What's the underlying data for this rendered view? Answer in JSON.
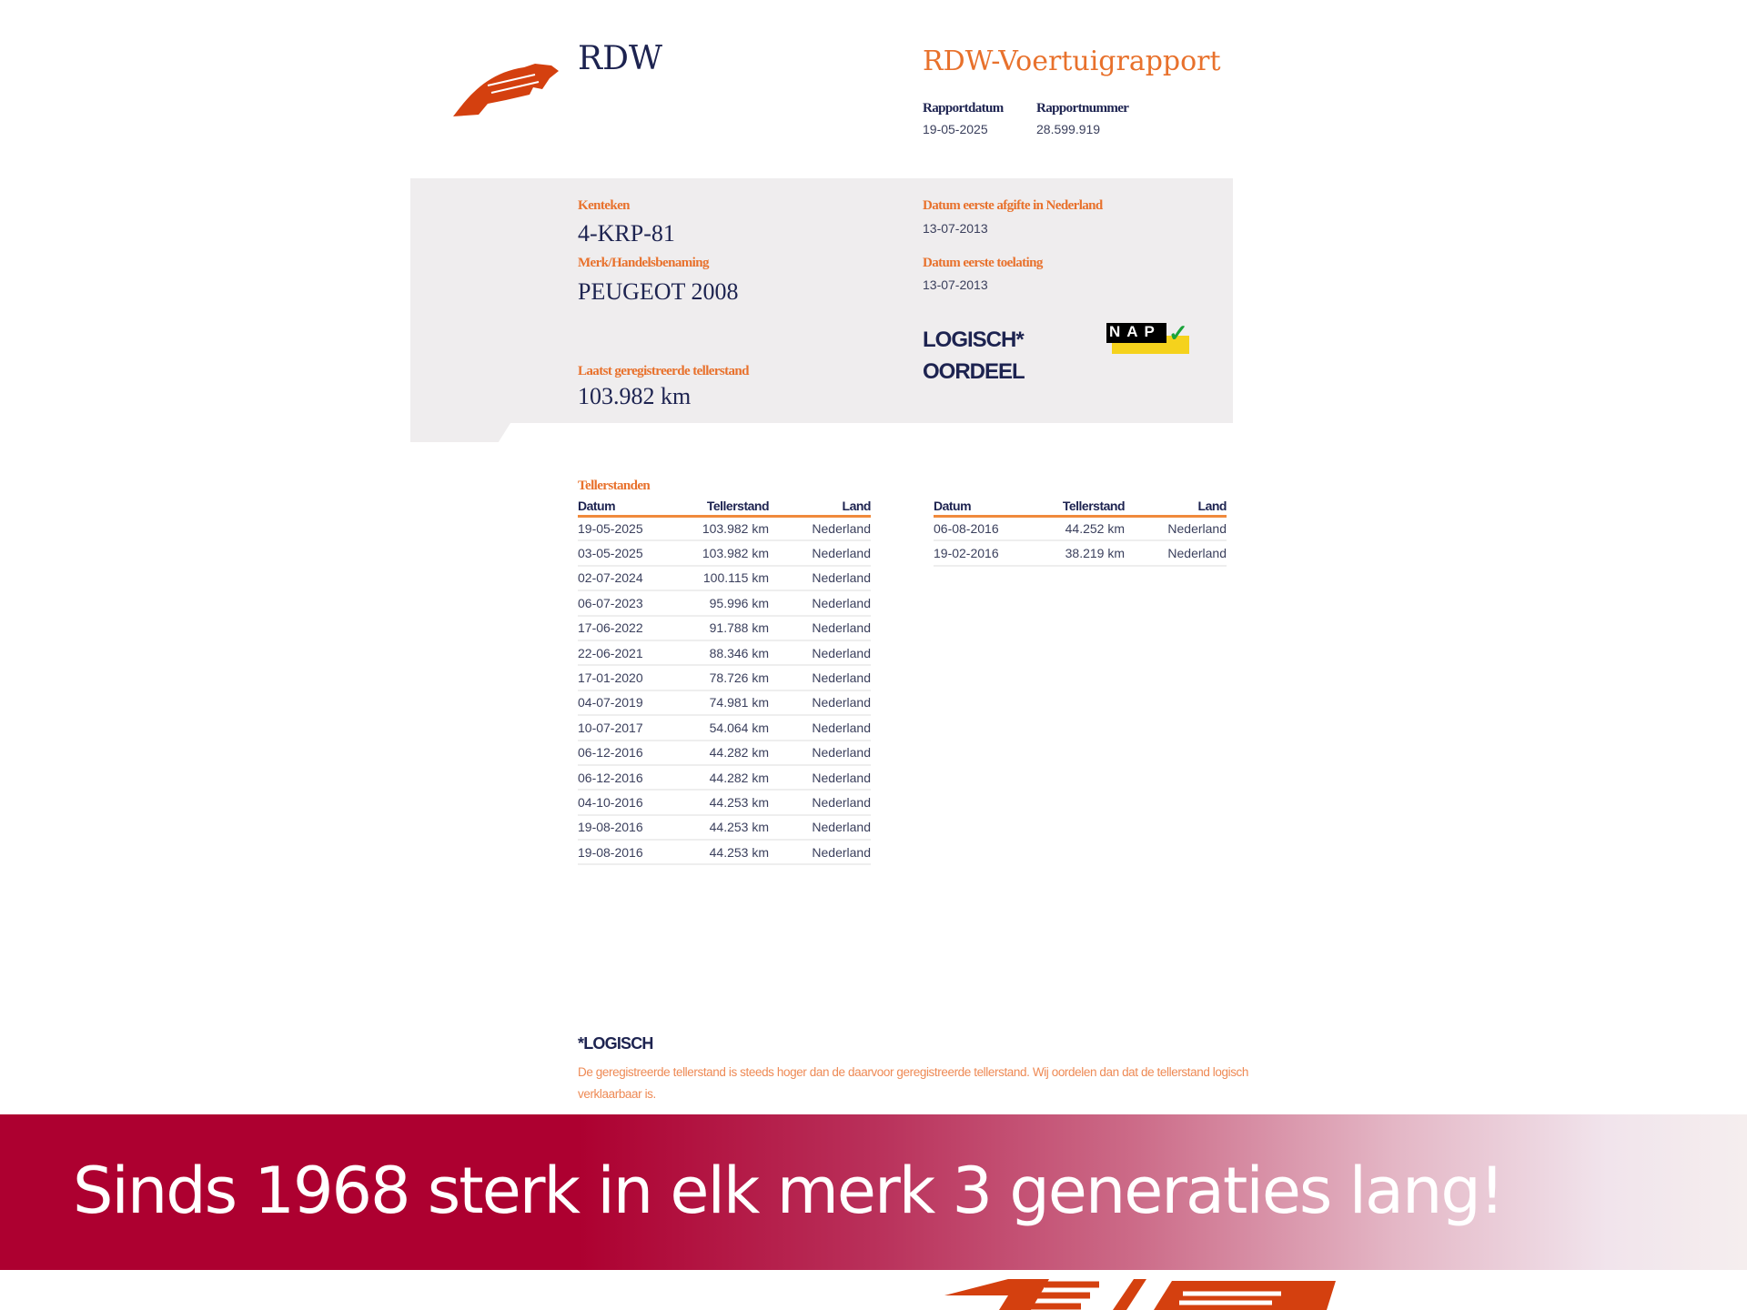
{
  "header": {
    "org": "RDW",
    "title": "RDW-Voertuigrapport",
    "report_date_label": "Rapportdatum",
    "report_date": "19-05-2025",
    "report_number_label": "Rapportnummer",
    "report_number": "28.599.919"
  },
  "vehicle": {
    "plate_label": "Kenteken",
    "plate": "4-KRP-81",
    "make_label": "Merk/Handelsbenaming",
    "make": "PEUGEOT 2008",
    "last_odo_label": "Laatst geregistreerde tellerstand",
    "last_odo": "103.982 km",
    "first_nl_label": "Datum eerste afgifte in Nederland",
    "first_nl": "13-07-2013",
    "first_admission_label": "Datum eerste toelating",
    "first_admission": "13-07-2013",
    "verdict": "LOGISCH*",
    "verdict_label": "OORDEEL",
    "nap_logo": "NAP"
  },
  "odometer": {
    "title": "Tellerstanden",
    "columns": [
      "Datum",
      "Tellerstand",
      "Land"
    ],
    "table1": [
      [
        "19-05-2025",
        "103.982 km",
        "Nederland"
      ],
      [
        "03-05-2025",
        "103.982 km",
        "Nederland"
      ],
      [
        "02-07-2024",
        "100.115 km",
        "Nederland"
      ],
      [
        "06-07-2023",
        "95.996 km",
        "Nederland"
      ],
      [
        "17-06-2022",
        "91.788 km",
        "Nederland"
      ],
      [
        "22-06-2021",
        "88.346 km",
        "Nederland"
      ],
      [
        "17-01-2020",
        "78.726 km",
        "Nederland"
      ],
      [
        "04-07-2019",
        "74.981 km",
        "Nederland"
      ],
      [
        "10-07-2017",
        "54.064 km",
        "Nederland"
      ],
      [
        "06-12-2016",
        "44.282 km",
        "Nederland"
      ],
      [
        "06-12-2016",
        "44.282 km",
        "Nederland"
      ],
      [
        "04-10-2016",
        "44.253 km",
        "Nederland"
      ],
      [
        "19-08-2016",
        "44.253 km",
        "Nederland"
      ],
      [
        "19-08-2016",
        "44.253 km",
        "Nederland"
      ]
    ],
    "table2": [
      [
        "06-08-2016",
        "44.252 km",
        "Nederland"
      ],
      [
        "19-02-2016",
        "38.219 km",
        "Nederland"
      ]
    ]
  },
  "footnote": {
    "title": "LOGISCH",
    "text": "De geregistreerde tellerstand is steeds hoger dan de daarvoor geregistreerde tellerstand. Wij oordelen dan dat de tellerstand logisch verklaarbaar is."
  },
  "banner": {
    "slogan": "Sinds 1968 sterk in elk merk 3 generaties lang!"
  },
  "colors": {
    "accent": "#e8712c",
    "navy": "#1d2350",
    "banner": "#ad0030",
    "logo": "#d4400f"
  }
}
